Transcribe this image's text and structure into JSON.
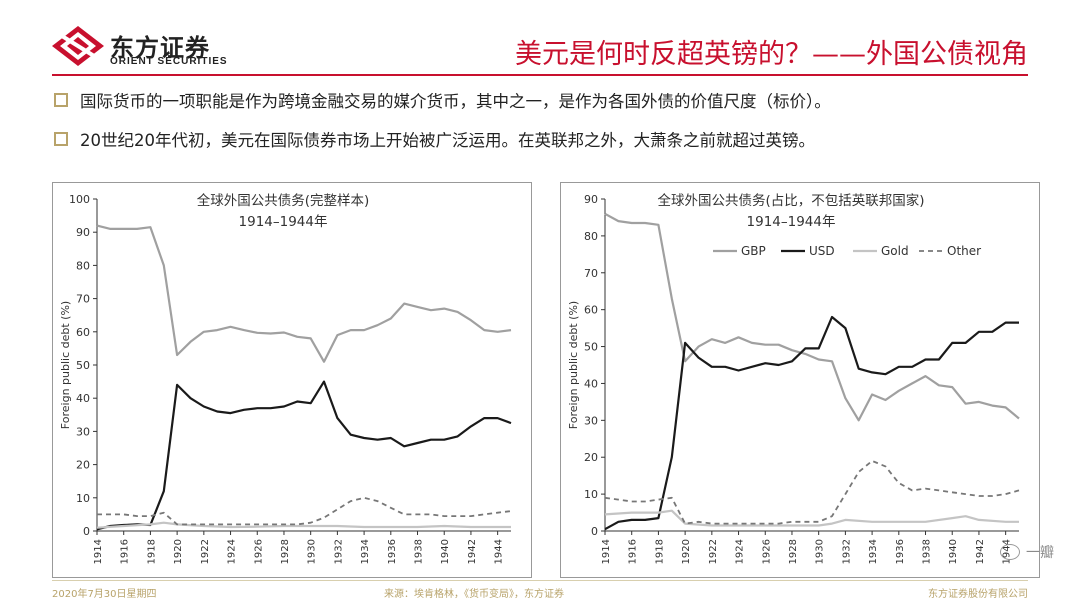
{
  "header": {
    "logo_cn": "东方证券",
    "logo_en": "ORIENT SECURITIES",
    "title": "美元是何时反超英镑的？——外国公债视角"
  },
  "bullets": [
    "国际货币的一项职能是作为跨境金融交易的媒介货币，其中之一，是作为各国外债的价值尺度（标价）。",
    "20世纪20年代初，美元在国际债券市场上开始被广泛运用。在英联邦之外，大萧条之前就超过英镑。"
  ],
  "footer": {
    "date": "2020年7月30日星期四",
    "source": "来源：埃肯格林，《货币变局》，东方证券",
    "company": "东方证券股份有限公司"
  },
  "watermark": "一瓣",
  "colors": {
    "brand_red": "#c8102e",
    "gold": "#b8a36a",
    "gbp": "#a0a0a0",
    "usd": "#1a1a1a",
    "gold_series": "#c4c4c4",
    "other": "#777777"
  },
  "chart_data": [
    {
      "type": "line",
      "title": "全球外国公共债务(完整样本)",
      "subtitle": "1914–1944年",
      "ylabel": "Foreign public debt (%)",
      "xlabel": "",
      "ylim": [
        0,
        100
      ],
      "yticks": [
        0,
        10,
        20,
        30,
        40,
        50,
        60,
        70,
        80,
        90,
        100
      ],
      "xlim": [
        1914,
        1945
      ],
      "xticks": [
        "1914",
        "1916",
        "1918",
        "1920",
        "1922",
        "1924",
        "1926",
        "1928",
        "1930",
        "1932",
        "1934",
        "1936",
        "1938",
        "1940",
        "1942",
        "1944"
      ],
      "legend": false,
      "series": [
        {
          "style": "gbp",
          "x": [
            1914,
            1915,
            1916,
            1917,
            1918,
            1919,
            1920,
            1921,
            1922,
            1923,
            1924,
            1925,
            1926,
            1927,
            1928,
            1929,
            1930,
            1931,
            1932,
            1933,
            1934,
            1935,
            1936,
            1937,
            1938,
            1939,
            1940,
            1941,
            1942,
            1943,
            1944,
            1945
          ],
          "values": [
            92,
            91,
            91,
            91,
            91.5,
            80,
            53,
            57,
            60,
            60.5,
            61.5,
            60.5,
            59.7,
            59.5,
            59.8,
            58.5,
            58,
            51,
            59,
            60.5,
            60.5,
            62,
            64,
            68.5,
            67.5,
            66.5,
            67,
            66,
            63.5,
            60.5,
            60,
            60.5
          ]
        },
        {
          "style": "usd",
          "x": [
            1914,
            1915,
            1916,
            1917,
            1918,
            1919,
            1920,
            1921,
            1922,
            1923,
            1924,
            1925,
            1926,
            1927,
            1928,
            1929,
            1930,
            1931,
            1932,
            1933,
            1934,
            1935,
            1936,
            1937,
            1938,
            1939,
            1940,
            1941,
            1942,
            1943,
            1944,
            1945
          ],
          "values": [
            0.5,
            1.5,
            1.8,
            2,
            1.8,
            12,
            44,
            40,
            37.5,
            36,
            35.5,
            36.5,
            37,
            37,
            37.5,
            39,
            38.5,
            45,
            34,
            29,
            28,
            27.5,
            28,
            25.5,
            26.5,
            27.5,
            27.5,
            28.5,
            31.5,
            34,
            34,
            32.5
          ]
        },
        {
          "style": "gold",
          "x": [
            1914,
            1916,
            1918,
            1919,
            1920,
            1922,
            1924,
            1926,
            1928,
            1930,
            1932,
            1934,
            1936,
            1938,
            1940,
            1942,
            1944,
            1945
          ],
          "values": [
            1,
            1.5,
            2,
            2.5,
            2,
            1.5,
            1.2,
            1.3,
            1.5,
            1.5,
            1.5,
            1.2,
            1.2,
            1.2,
            1.5,
            1.2,
            1.2,
            1.2
          ]
        },
        {
          "style": "other",
          "x": [
            1914,
            1915,
            1916,
            1917,
            1918,
            1919,
            1920,
            1921,
            1922,
            1923,
            1924,
            1925,
            1926,
            1927,
            1928,
            1929,
            1930,
            1931,
            1932,
            1933,
            1934,
            1935,
            1936,
            1937,
            1938,
            1939,
            1940,
            1941,
            1942,
            1943,
            1944,
            1945
          ],
          "values": [
            5,
            5,
            5,
            4.5,
            4.5,
            5.5,
            2,
            2,
            2,
            2,
            2,
            2,
            2,
            2,
            2,
            2,
            2.5,
            4,
            6.5,
            9,
            10,
            9,
            7,
            5,
            5,
            5,
            4.5,
            4.5,
            4.5,
            5,
            5.5,
            6
          ]
        }
      ]
    },
    {
      "type": "line",
      "title": "全球外国公共债务(占比，不包括英联邦国家)",
      "subtitle": "1914–1944年",
      "ylabel": "Foreign public debt (%)",
      "xlabel": "",
      "ylim": [
        0,
        90
      ],
      "yticks": [
        0,
        10,
        20,
        30,
        40,
        50,
        60,
        70,
        80,
        90
      ],
      "xlim": [
        1914,
        1945
      ],
      "xticks": [
        "1914",
        "1916",
        "1918",
        "1920",
        "1922",
        "1924",
        "1926",
        "1928",
        "1930",
        "1932",
        "1934",
        "1936",
        "1938",
        "1940",
        "1942",
        "1944"
      ],
      "legend": true,
      "legend_position": "top",
      "series": [
        {
          "name": "GBP",
          "style": "gbp",
          "x": [
            1914,
            1915,
            1916,
            1917,
            1918,
            1919,
            1920,
            1921,
            1922,
            1923,
            1924,
            1925,
            1926,
            1927,
            1928,
            1929,
            1930,
            1931,
            1932,
            1933,
            1934,
            1935,
            1936,
            1937,
            1938,
            1939,
            1940,
            1941,
            1942,
            1943,
            1944,
            1945
          ],
          "values": [
            86,
            84,
            83.5,
            83.5,
            83,
            63,
            46,
            50,
            52,
            51,
            52.5,
            51,
            50.5,
            50.5,
            49,
            48,
            46.5,
            46,
            36,
            30,
            37,
            35.5,
            38,
            40,
            42,
            39.5,
            39,
            34.5,
            35,
            34,
            33.5,
            30.5
          ]
        },
        {
          "name": "USD",
          "style": "usd",
          "x": [
            1914,
            1915,
            1916,
            1917,
            1918,
            1919,
            1920,
            1921,
            1922,
            1923,
            1924,
            1925,
            1926,
            1927,
            1928,
            1929,
            1930,
            1931,
            1932,
            1933,
            1934,
            1935,
            1936,
            1937,
            1938,
            1939,
            1940,
            1941,
            1942,
            1943,
            1944,
            1945
          ],
          "values": [
            0.5,
            2.5,
            3,
            3,
            3.5,
            20,
            51,
            47,
            44.5,
            44.5,
            43.5,
            44.5,
            45.5,
            45,
            46,
            49.5,
            49.5,
            58,
            55,
            44,
            43,
            42.5,
            44.5,
            44.5,
            46.5,
            46.5,
            51,
            51,
            54,
            54,
            56.5,
            56.5
          ]
        },
        {
          "name": "Gold",
          "style": "gold",
          "x": [
            1914,
            1916,
            1918,
            1919,
            1920,
            1922,
            1924,
            1926,
            1928,
            1930,
            1931,
            1932,
            1934,
            1936,
            1938,
            1940,
            1941,
            1942,
            1944,
            1945
          ],
          "values": [
            4.5,
            5,
            5,
            5.5,
            2,
            1.5,
            1.5,
            1.5,
            1.5,
            1.5,
            2,
            3,
            2.5,
            2.5,
            2.5,
            3.5,
            4,
            3,
            2.5,
            2.5
          ]
        },
        {
          "name": "Other",
          "style": "other",
          "x": [
            1914,
            1915,
            1916,
            1917,
            1918,
            1919,
            1920,
            1921,
            1922,
            1923,
            1924,
            1925,
            1926,
            1927,
            1928,
            1929,
            1930,
            1931,
            1932,
            1933,
            1934,
            1935,
            1936,
            1937,
            1938,
            1939,
            1940,
            1941,
            1942,
            1943,
            1944,
            1945
          ],
          "values": [
            9,
            8.5,
            8,
            8,
            8.5,
            9,
            2,
            2.5,
            2,
            2,
            2,
            2,
            2,
            2,
            2.5,
            2.5,
            2.5,
            4,
            10,
            16,
            19,
            17.5,
            13,
            11,
            11.5,
            11,
            10.5,
            10,
            9.5,
            9.5,
            10,
            11
          ]
        }
      ]
    }
  ]
}
